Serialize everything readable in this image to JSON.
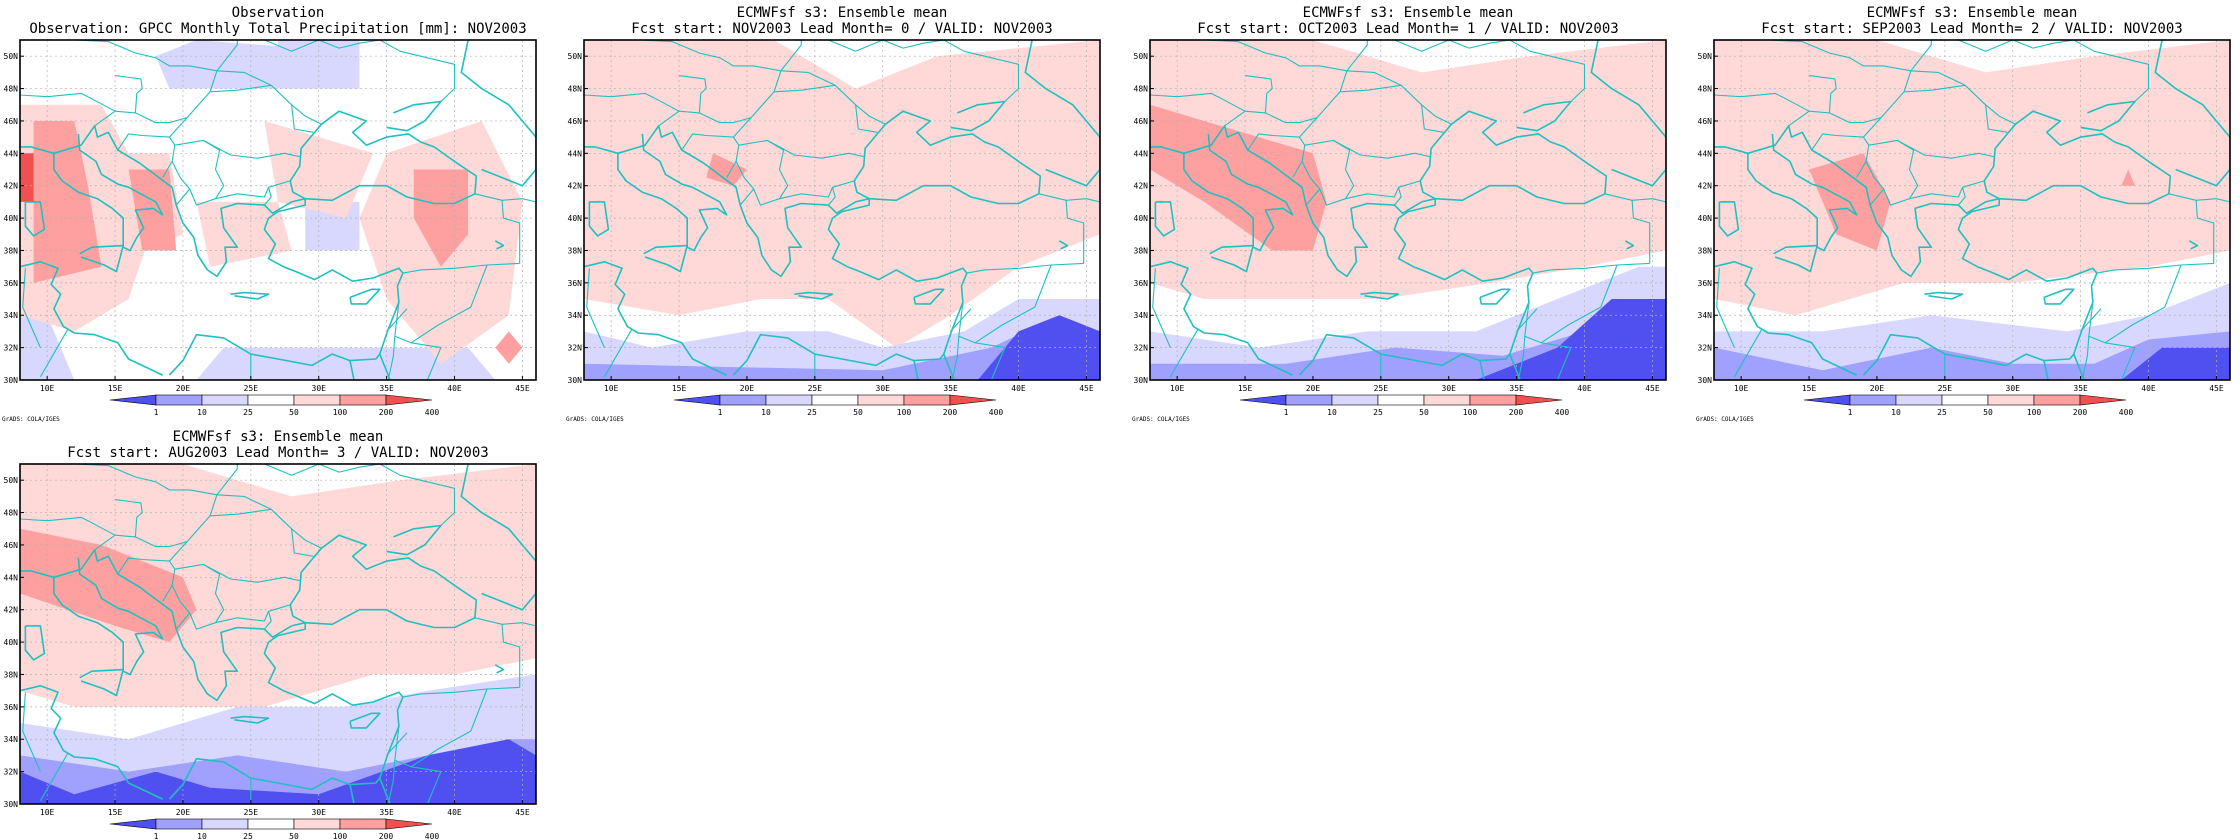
{
  "panels": [
    {
      "title1": "Observation",
      "title2": "Observation: GPCC Monthly Total Precipitation [mm]: NOV2003",
      "field": "obs"
    },
    {
      "title1": "ECMWFsf s3: Ensemble mean",
      "title2": "Fcst start: NOV2003  Lead Month= 0 / VALID: NOV2003",
      "field": "lead0"
    },
    {
      "title1": "ECMWFsf s3: Ensemble mean",
      "title2": "Fcst start: OCT2003  Lead Month= 1 / VALID: NOV2003",
      "field": "lead1"
    },
    {
      "title1": "ECMWFsf s3: Ensemble mean",
      "title2": "Fcst start: SEP2003  Lead Month= 2 / VALID: NOV2003",
      "field": "lead2"
    },
    {
      "title1": "ECMWFsf s3: Ensemble mean",
      "title2": "Fcst start: AUG2003  Lead Month= 3 / VALID: NOV2003",
      "field": "lead3"
    }
  ],
  "map": {
    "lon_range": [
      8,
      46
    ],
    "lat_range": [
      30,
      51
    ],
    "x_ticks": [
      "10E",
      "15E",
      "20E",
      "25E",
      "30E",
      "35E",
      "40E",
      "45E"
    ],
    "y_ticks": [
      "30N",
      "32N",
      "34N",
      "36N",
      "38N",
      "40N",
      "42N",
      "44N",
      "46N",
      "48N",
      "50N"
    ]
  },
  "colorbar": {
    "levels": [
      "1",
      "10",
      "25",
      "50",
      "100",
      "200",
      "400"
    ],
    "colors": [
      "#5050f0",
      "#a0a0ff",
      "#d8d8ff",
      "#ffffff",
      "#ffd8d8",
      "#ffa0a0",
      "#f05050"
    ]
  },
  "credit": "GrADS: COLA/IGES",
  "colors": {
    "coast": "#20c0c0",
    "frame": "#000000",
    "grid": "#b0b0b0"
  }
}
